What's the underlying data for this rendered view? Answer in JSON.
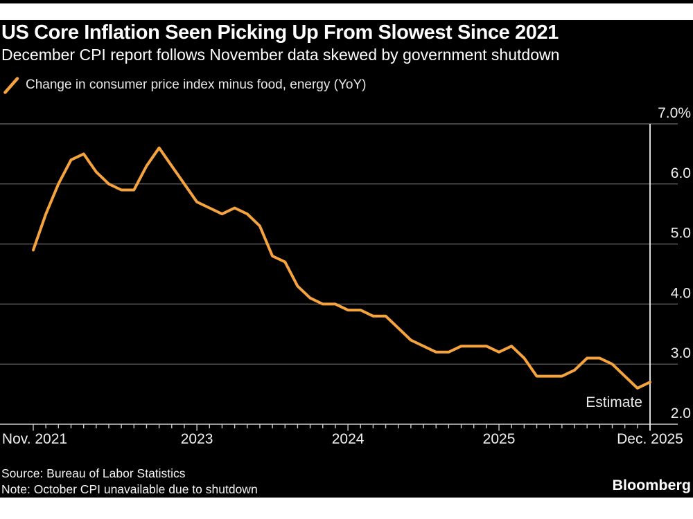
{
  "page": {
    "background": "#ffffff",
    "top_bar_color": "#000000",
    "card_background": "#000000"
  },
  "header": {
    "title": "US Core Inflation Seen Picking Up From Slowest Since 2021",
    "subtitle": "December CPI report follows November data skewed by government shutdown"
  },
  "legend": {
    "label": "Change in consumer price index minus food, energy (YoY)",
    "marker": "line-slash",
    "marker_color": "#F5A33C"
  },
  "chart_data": {
    "type": "line",
    "title": "US Core Inflation Seen Picking Up From Slowest Since 2021",
    "unit": "%",
    "grid": "horizontal",
    "legend_position": "top-left",
    "line_color": "#F5A33C",
    "grid_color": "#6b6b6b",
    "axis_color": "#c9c9c9",
    "x": [
      "Nov 2021",
      "Dec 2021",
      "Jan 2022",
      "Feb 2022",
      "Mar 2022",
      "Apr 2022",
      "May 2022",
      "Jun 2022",
      "Jul 2022",
      "Aug 2022",
      "Sep 2022",
      "Oct 2022",
      "Nov 2022",
      "Dec 2022",
      "Jan 2023",
      "Feb 2023",
      "Mar 2023",
      "Apr 2023",
      "May 2023",
      "Jun 2023",
      "Jul 2023",
      "Aug 2023",
      "Sep 2023",
      "Oct 2023",
      "Nov 2023",
      "Dec 2023",
      "Jan 2024",
      "Feb 2024",
      "Mar 2024",
      "Apr 2024",
      "May 2024",
      "Jun 2024",
      "Jul 2024",
      "Aug 2024",
      "Sep 2024",
      "Oct 2024",
      "Nov 2024",
      "Dec 2024",
      "Jan 2025",
      "Feb 2025",
      "Mar 2025",
      "Apr 2025",
      "May 2025",
      "Jun 2025",
      "Jul 2025",
      "Aug 2025",
      "Sep 2025",
      "Oct 2025",
      "Nov 2025",
      "Dec 2025"
    ],
    "series": [
      {
        "name": "Change in consumer price index minus food, energy (YoY)",
        "color": "#F5A33C",
        "values": [
          4.9,
          5.5,
          6.0,
          6.4,
          6.5,
          6.2,
          6.0,
          5.9,
          5.9,
          6.3,
          6.6,
          6.3,
          6.0,
          5.7,
          5.6,
          5.5,
          5.6,
          5.5,
          5.3,
          4.8,
          4.7,
          4.3,
          4.1,
          4.0,
          4.0,
          3.9,
          3.9,
          3.8,
          3.8,
          3.6,
          3.4,
          3.3,
          3.2,
          3.2,
          3.3,
          3.3,
          3.3,
          3.2,
          3.3,
          3.1,
          2.8,
          2.8,
          2.8,
          2.9,
          3.1,
          3.1,
          3.0,
          null,
          2.6,
          2.7
        ]
      }
    ],
    "missing_point_note": "Oct 2025 value unavailable (government shutdown)",
    "last_point_is_estimate": true,
    "annotation": {
      "text": "Estimate"
    },
    "y_axis": {
      "min": 2.0,
      "max": 7.0,
      "ticks": [
        7.0,
        6.0,
        5.0,
        4.0,
        3.0,
        2.0
      ],
      "tick_labels": [
        "7.0%",
        "6.0",
        "5.0",
        "4.0",
        "3.0",
        "2.0"
      ]
    },
    "x_axis": {
      "minor_tick_every": 1,
      "major_ticks": [
        {
          "index": 0,
          "label": "Nov. 2021"
        },
        {
          "index": 13,
          "label": "2023"
        },
        {
          "index": 25,
          "label": "2024"
        },
        {
          "index": 37,
          "label": "2025"
        },
        {
          "index": 49,
          "label": "Dec. 2025"
        }
      ]
    }
  },
  "footer": {
    "source": "Source: Bureau of Labor Statistics",
    "note": "Note: October CPI unavailable due to shutdown",
    "brand": "Bloomberg"
  }
}
